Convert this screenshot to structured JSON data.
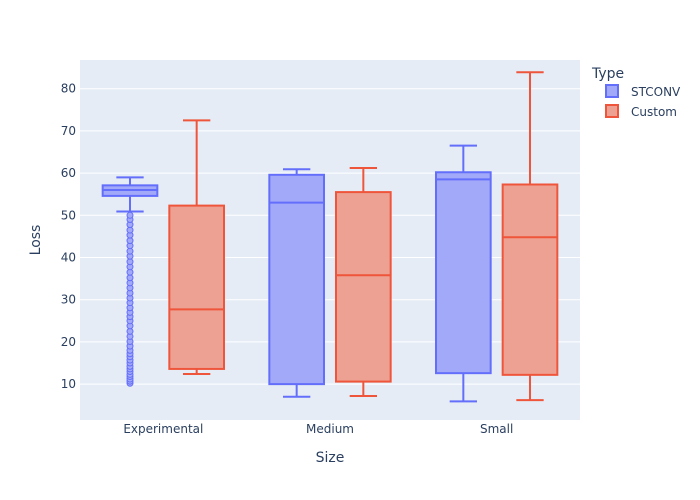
{
  "chart_data": {
    "type": "box",
    "title": "",
    "xlabel": "Size",
    "ylabel": "Loss",
    "categories": [
      "Experimental",
      "Medium",
      "Small"
    ],
    "y_ticks": [
      10,
      20,
      30,
      40,
      50,
      60,
      70,
      80
    ],
    "ylim": [
      1.5,
      86.8
    ],
    "grid": true,
    "legend": {
      "title": "Type",
      "placement": "right"
    },
    "series": [
      {
        "name": "STCONV",
        "color": "#636efa",
        "fill": "#a3a9f9",
        "boxes": [
          {
            "category": "Experimental",
            "min": 50.9,
            "q1": 54.6,
            "median": 56.0,
            "q3": 57.1,
            "max": 59.0,
            "outliers": [
              10.2,
              10.7,
              11.2,
              11.8,
              12.3,
              13.0,
              13.6,
              14.2,
              15.0,
              15.7,
              16.5,
              17.2,
              18.0,
              19.0,
              20.1,
              21.3,
              22.5,
              23.8,
              25.0,
              26.0,
              27.0,
              28.1,
              29.3,
              30.4,
              31.6,
              32.8,
              34.0,
              35.2,
              36.5,
              37.8,
              39.0,
              40.3,
              41.5,
              42.8,
              44.0,
              45.3,
              46.5,
              47.8,
              49.0,
              50.0
            ]
          },
          {
            "category": "Medium",
            "min": 7.0,
            "q1": 10.0,
            "median": 53.0,
            "q3": 59.6,
            "max": 60.9,
            "outliers": []
          },
          {
            "category": "Small",
            "min": 5.9,
            "q1": 12.6,
            "median": 58.5,
            "q3": 60.2,
            "max": 66.5,
            "outliers": []
          }
        ]
      },
      {
        "name": "Custom",
        "color": "#ef553b",
        "fill": "#eda193",
        "boxes": [
          {
            "category": "Experimental",
            "min": 12.4,
            "q1": 13.6,
            "median": 27.7,
            "q3": 52.3,
            "max": 72.5,
            "outliers": []
          },
          {
            "category": "Medium",
            "min": 7.2,
            "q1": 10.6,
            "median": 35.8,
            "q3": 55.5,
            "max": 61.2,
            "outliers": []
          },
          {
            "category": "Small",
            "min": 6.2,
            "q1": 12.2,
            "median": 44.8,
            "q3": 57.3,
            "max": 83.9,
            "outliers": []
          }
        ]
      }
    ]
  }
}
